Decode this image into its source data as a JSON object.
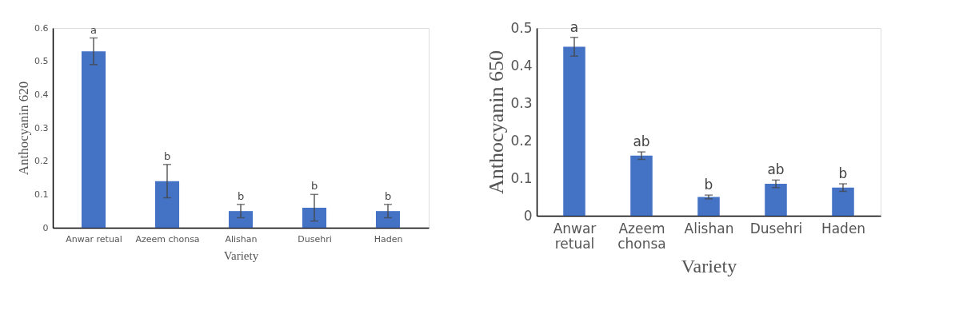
{
  "chart_data": [
    {
      "type": "bar",
      "xlabel": "Variety",
      "ylabel": "Anthocyanin 620",
      "categories": [
        "Anwar retual",
        "Azeem chonsa",
        "Alishan",
        "Dusehri",
        "Haden"
      ],
      "series": [
        {
          "color": "#4472c4",
          "values": [
            0.53,
            0.14,
            0.05,
            0.06,
            0.05
          ],
          "errors": [
            0.04,
            0.05,
            0.02,
            0.04,
            0.02
          ]
        }
      ],
      "ylim": [
        0,
        0.6
      ],
      "yticks": [
        {
          "value": 0,
          "label": "0"
        },
        0.1,
        0.2,
        0.3,
        0.4,
        0.5,
        0.6
      ],
      "grid": false,
      "annotations": [
        "a",
        "b",
        "b",
        "b",
        "b"
      ]
    },
    {
      "type": "bar",
      "xlabel": "Variety",
      "ylabel": "Anthocyanin 650",
      "categories": [
        "Anwar retual",
        "Azeem chonsa",
        "Alishan",
        "Dusehri",
        "Haden"
      ],
      "series": [
        {
          "color": "#4472c4",
          "values": [
            0.45,
            0.16,
            0.05,
            0.085,
            0.075
          ],
          "errors": [
            0.025,
            0.01,
            0.005,
            0.01,
            0.01
          ]
        }
      ],
      "ylim": [
        0,
        0.5
      ],
      "yticks": [
        {
          "value": 0,
          "label": "0"
        },
        0.1,
        0.2,
        0.3,
        0.4,
        0.5
      ],
      "grid": false,
      "annotations": [
        "a",
        "ab",
        "b",
        "ab",
        "b"
      ]
    }
  ]
}
